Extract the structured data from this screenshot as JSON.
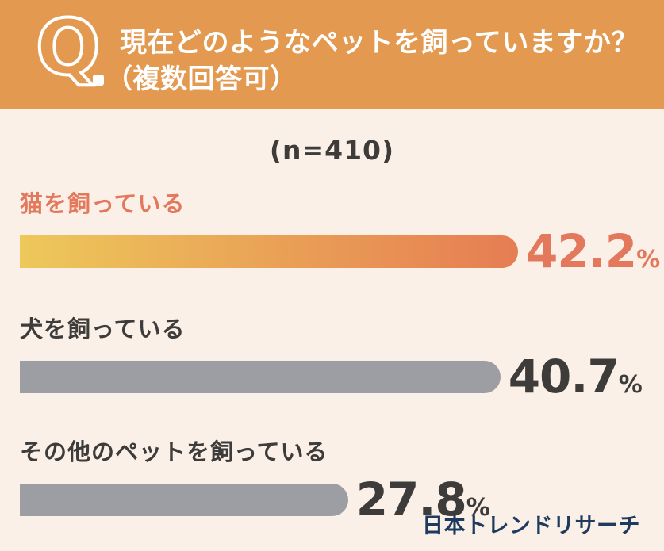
{
  "header": {
    "q_mark": "Q",
    "question_line1": "現在どのようなペットを飼っていますか？",
    "question_line2": "（複数回答可）"
  },
  "sample_size_label": "(n=410)",
  "chart_data": {
    "type": "bar",
    "orientation": "horizontal",
    "title": "現在どのようなペットを飼っていますか？（複数回答可）",
    "sample_size": 410,
    "sample_size_label": "(n=410)",
    "categories": [
      "猫を飼っている",
      "犬を飼っている",
      "その他のペットを飼っている"
    ],
    "values": [
      42.2,
      40.7,
      27.8
    ],
    "unit": "%",
    "xlim": [
      0,
      45
    ],
    "grid": false,
    "legend": "none",
    "highlight_index": 0,
    "value_labels": [
      "42.2%",
      "40.7%",
      "27.8%"
    ]
  },
  "bars": [
    {
      "label": "猫を飼っている",
      "value": "42.2",
      "unit": "%",
      "highlighted": true
    },
    {
      "label": "犬を飼っている",
      "value": "40.7",
      "unit": "%",
      "highlighted": false
    },
    {
      "label": "その他のペットを飼っている",
      "value": "27.8",
      "unit": "%",
      "highlighted": false
    }
  ],
  "footer": {
    "brand": "日本トレンドリサーチ"
  },
  "colors": {
    "header_bg": "#E39A50",
    "page_bg": "#FAF0E8",
    "highlight_text": "#E4785C",
    "bar_gradient_start": "#EDC85A",
    "bar_gradient_end": "#E67D53",
    "bar_gray": "#9D9EA3",
    "text_dark": "#3E3C3A",
    "brand_navy": "#1E3A5F",
    "header_text": "#FFFFFF"
  }
}
